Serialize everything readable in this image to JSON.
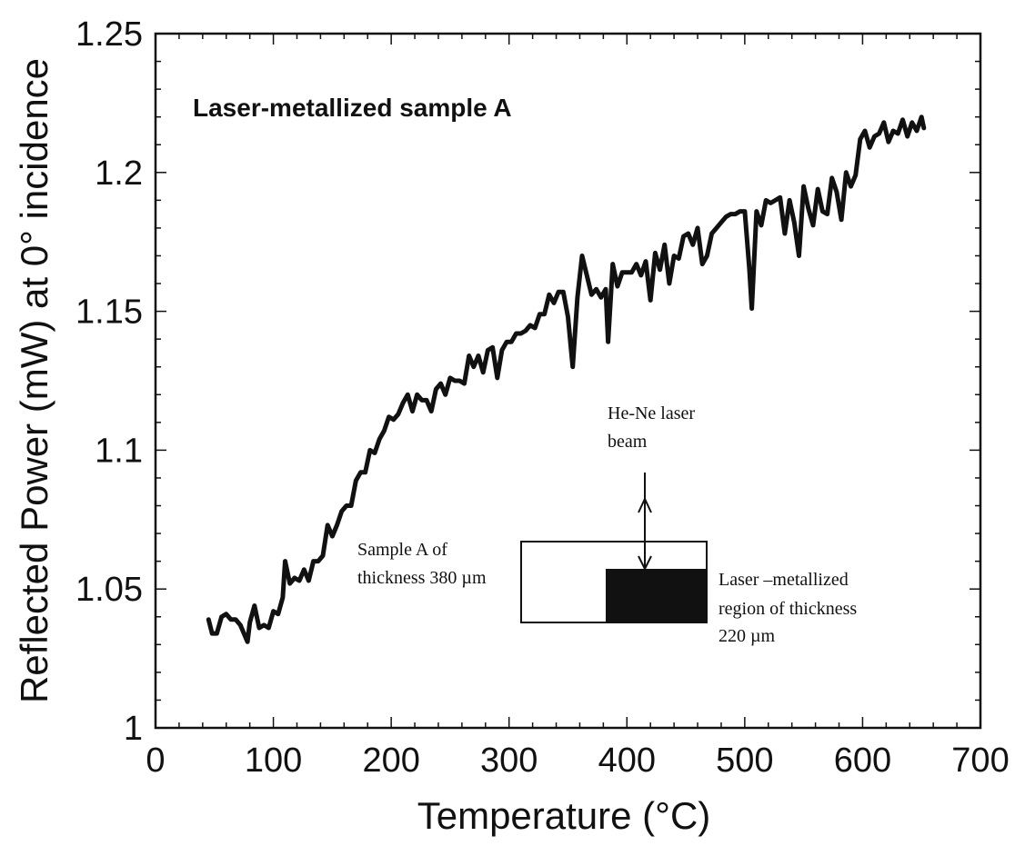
{
  "chart_data": {
    "type": "line",
    "title": "Laser-metallized sample A",
    "xlabel": "Temperature (°C)",
    "ylabel": "Reflected Power (mW) at 0° incidence",
    "xlim": [
      0,
      700
    ],
    "ylim": [
      1,
      1.25
    ],
    "xticks": [
      0,
      100,
      200,
      300,
      400,
      500,
      600,
      700
    ],
    "xtick_labels": [
      "0",
      "100",
      "200",
      "300",
      "400",
      "500",
      "600",
      "700"
    ],
    "yticks": [
      1,
      1.05,
      1.1,
      1.15,
      1.2,
      1.25
    ],
    "ytick_labels": [
      "1",
      "1.05",
      "1.1",
      "1.15",
      "1.2",
      "1.25"
    ],
    "grid": false,
    "series": [
      {
        "color": "#111111",
        "x": [
          45,
          48,
          52,
          56,
          60,
          64,
          68,
          72,
          76,
          78,
          80,
          84,
          88,
          92,
          96,
          100,
          104,
          108,
          110,
          114,
          118,
          122,
          126,
          130,
          134,
          138,
          142,
          146,
          150,
          154,
          158,
          162,
          166,
          170,
          174,
          178,
          182,
          186,
          190,
          194,
          198,
          202,
          206,
          210,
          214,
          218,
          222,
          226,
          230,
          234,
          238,
          242,
          246,
          250,
          254,
          258,
          262,
          266,
          270,
          274,
          278,
          282,
          286,
          290,
          294,
          298,
          302,
          306,
          310,
          314,
          318,
          322,
          326,
          330,
          334,
          338,
          342,
          346,
          350,
          354,
          358,
          362,
          366,
          370,
          374,
          378,
          382,
          384,
          388,
          392,
          396,
          400,
          404,
          408,
          412,
          416,
          420,
          424,
          428,
          432,
          436,
          440,
          444,
          448,
          452,
          456,
          460,
          464,
          468,
          472,
          476,
          480,
          484,
          488,
          492,
          496,
          500,
          504,
          506,
          510,
          514,
          518,
          522,
          526,
          530,
          534,
          538,
          542,
          546,
          550,
          554,
          558,
          562,
          566,
          570,
          574,
          578,
          582,
          586,
          590,
          594,
          598,
          602,
          606,
          610,
          614,
          618,
          622,
          626,
          630,
          634,
          638,
          642,
          646,
          650,
          652
        ],
        "y": [
          1.039,
          1.034,
          1.034,
          1.04,
          1.041,
          1.039,
          1.039,
          1.037,
          1.033,
          1.031,
          1.038,
          1.044,
          1.036,
          1.037,
          1.036,
          1.042,
          1.041,
          1.047,
          1.06,
          1.052,
          1.054,
          1.053,
          1.057,
          1.053,
          1.06,
          1.06,
          1.062,
          1.073,
          1.069,
          1.073,
          1.078,
          1.08,
          1.08,
          1.089,
          1.092,
          1.092,
          1.1,
          1.099,
          1.104,
          1.107,
          1.112,
          1.111,
          1.113,
          1.117,
          1.12,
          1.114,
          1.12,
          1.118,
          1.118,
          1.114,
          1.122,
          1.124,
          1.12,
          1.126,
          1.125,
          1.125,
          1.124,
          1.134,
          1.13,
          1.134,
          1.128,
          1.136,
          1.137,
          1.126,
          1.136,
          1.139,
          1.139,
          1.142,
          1.142,
          1.143,
          1.145,
          1.144,
          1.149,
          1.149,
          1.156,
          1.153,
          1.157,
          1.157,
          1.148,
          1.13,
          1.155,
          1.17,
          1.163,
          1.156,
          1.158,
          1.155,
          1.158,
          1.139,
          1.167,
          1.159,
          1.164,
          1.164,
          1.164,
          1.167,
          1.163,
          1.168,
          1.154,
          1.171,
          1.165,
          1.174,
          1.16,
          1.17,
          1.169,
          1.177,
          1.178,
          1.174,
          1.18,
          1.167,
          1.17,
          1.178,
          1.18,
          1.182,
          1.184,
          1.185,
          1.185,
          1.186,
          1.186,
          1.165,
          1.151,
          1.186,
          1.181,
          1.19,
          1.189,
          1.19,
          1.191,
          1.178,
          1.19,
          1.182,
          1.17,
          1.195,
          1.187,
          1.181,
          1.194,
          1.186,
          1.185,
          1.198,
          1.193,
          1.183,
          1.2,
          1.195,
          1.199,
          1.212,
          1.215,
          1.209,
          1.213,
          1.214,
          1.218,
          1.211,
          1.215,
          1.214,
          1.219,
          1.213,
          1.218,
          1.215,
          1.22,
          1.216
        ]
      }
    ]
  },
  "inset": {
    "beam_label_line1": "He-Ne laser",
    "beam_label_line2": "beam",
    "sample_label_line1": "Sample A of",
    "sample_label_line2": "thickness 380 µm",
    "region_label_line1": "Laser –metallized",
    "region_label_line2": "region of thickness",
    "region_label_line3": "220 µm"
  }
}
